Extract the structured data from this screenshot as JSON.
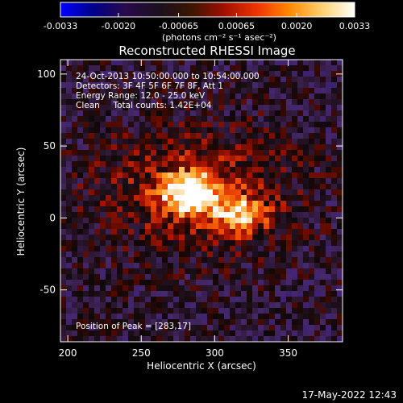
{
  "chart_data": {
    "type": "heatmap",
    "title": "Reconstructed RHESSI Image",
    "xlabel": "Heliocentric X (arcsec)",
    "ylabel": "Heliocentric Y (arcsec)",
    "xlim": [
      195,
      387
    ],
    "ylim": [
      -86,
      110
    ],
    "x_ticks": [
      200,
      250,
      300,
      350
    ],
    "y_ticks": [
      -50,
      0,
      50,
      100
    ],
    "colorbar": {
      "range": [
        -0.0033,
        0.0033
      ],
      "ticks": [
        "-0.0033",
        "-0.0020",
        "-0.00065",
        "0.00065",
        "0.0020",
        "0.0033"
      ],
      "tick_values": [
        -0.0033,
        -0.002,
        -0.00065,
        0.00065,
        0.002,
        0.0033
      ],
      "label": "(photons cm⁻² s⁻¹ asec⁻²)",
      "colors": [
        "#0000ff",
        "#00008a",
        "#2a0a4a",
        "#1a1020",
        "#3a1500",
        "#a01000",
        "#ee3300",
        "#ff8800",
        "#ffd070",
        "#ffffff"
      ]
    },
    "annotations": [
      "24-Oct-2013 10:50:00.000 to 10:54:00.000",
      "Detectors: 3F 4F 5F 6F 7F 8F, Att 1",
      "Energy Range: 12.0 - 25.0 keV",
      "Clean     Total counts: 1.42E+04"
    ],
    "peak_label": "Position of Peak = [283,17]",
    "sources": [
      {
        "x": 283,
        "y": 17,
        "peak": 0.0033
      },
      {
        "x": 317,
        "y": 2,
        "peak": 0.0024
      }
    ],
    "timestamp": "17-May-2022 12:43"
  }
}
